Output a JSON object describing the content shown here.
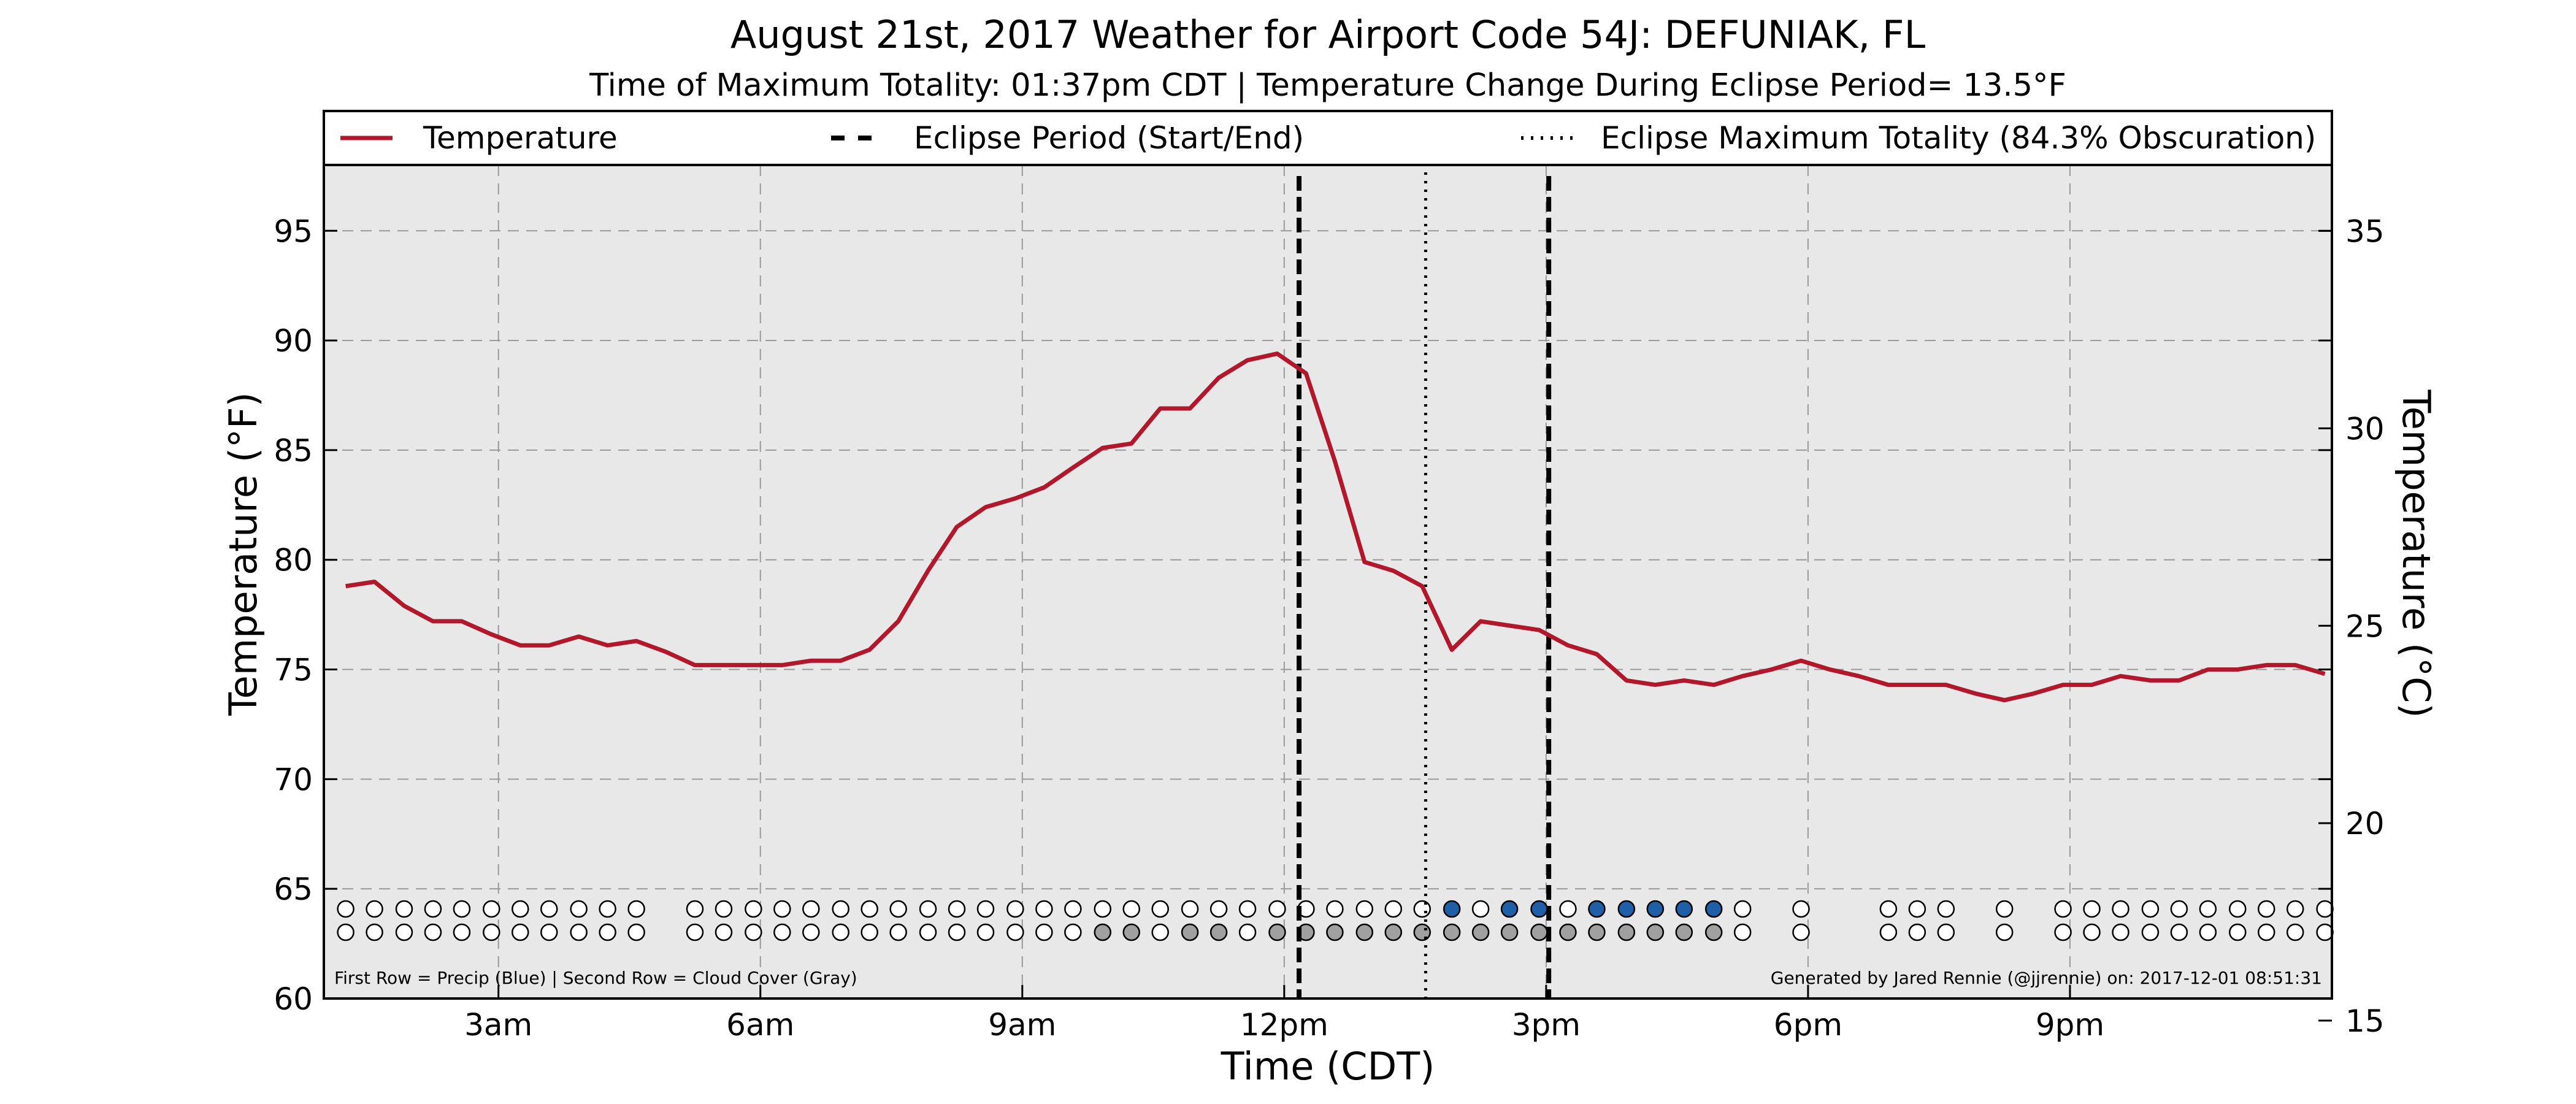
{
  "chart_data": {
    "type": "line",
    "title": "August 21st, 2017 Weather for Airport Code 54J: DEFUNIAK, FL",
    "subtitle": "Time of Maximum Totality: 01:37pm CDT | Temperature Change During Eclipse Period= 13.5°F",
    "xlabel": "Time (CDT)",
    "ylabel_left": "Temperature (°F)",
    "ylabel_right": "Temperature (°C)",
    "xlim": [
      1,
      24
    ],
    "ylim_left": [
      60,
      98
    ],
    "ylim_right": [
      15.56,
      36.67
    ],
    "x_ticks": [
      {
        "x": 3,
        "label": "3am"
      },
      {
        "x": 6,
        "label": "6am"
      },
      {
        "x": 9,
        "label": "9am"
      },
      {
        "x": 12,
        "label": "12pm"
      },
      {
        "x": 15,
        "label": "3pm"
      },
      {
        "x": 18,
        "label": "6pm"
      },
      {
        "x": 21,
        "label": "9pm"
      }
    ],
    "y_ticks_left": [
      60,
      65,
      70,
      75,
      80,
      85,
      90,
      95
    ],
    "y_ticks_right": [
      15,
      20,
      25,
      30,
      35
    ],
    "grid": true,
    "legend": {
      "position": "top",
      "entries": [
        "Temperature",
        "Eclipse Period (Start/End)",
        "Eclipse Maximum Totality (84.3% Obscuration)"
      ]
    },
    "colors": {
      "temperature": "#b2182b",
      "precip": "#1f5fa8",
      "cloud": "#a0a0a0",
      "plot_bg": "#e8e8e8"
    },
    "eclipse_start": 12.17,
    "eclipse_end": 15.03,
    "max_totality": 13.62,
    "series": [
      {
        "name": "Temperature",
        "x": [
          1.25,
          1.58,
          1.92,
          2.25,
          2.58,
          2.92,
          3.25,
          3.58,
          3.92,
          4.25,
          4.58,
          4.92,
          5.25,
          5.58,
          5.92,
          6.25,
          6.58,
          6.92,
          7.25,
          7.58,
          7.92,
          8.25,
          8.58,
          8.92,
          9.25,
          9.58,
          9.92,
          10.25,
          10.58,
          10.92,
          11.25,
          11.58,
          11.92,
          12.25,
          12.58,
          12.92,
          13.25,
          13.58,
          13.92,
          14.25,
          14.58,
          14.92,
          15.25,
          15.58,
          15.92,
          16.25,
          16.58,
          16.92,
          17.25,
          17.58,
          17.92,
          18.25,
          18.58,
          18.92,
          19.25,
          19.58,
          19.92,
          20.25,
          20.58,
          20.92,
          21.25,
          21.58,
          21.92,
          22.25,
          22.58,
          22.92,
          23.25,
          23.58,
          23.92
        ],
        "values": [
          78.8,
          79.0,
          77.9,
          77.2,
          77.2,
          76.6,
          76.1,
          76.1,
          76.5,
          76.1,
          76.3,
          75.8,
          75.2,
          75.2,
          75.2,
          75.2,
          75.4,
          75.4,
          75.9,
          77.2,
          79.5,
          81.5,
          82.4,
          82.8,
          83.3,
          84.2,
          85.1,
          85.3,
          86.9,
          86.9,
          88.3,
          89.1,
          89.4,
          88.5,
          84.5,
          79.9,
          79.5,
          78.8,
          75.9,
          77.2,
          77.0,
          76.8,
          76.1,
          75.7,
          74.5,
          74.3,
          74.5,
          74.3,
          74.7,
          75.0,
          75.4,
          75.0,
          74.7,
          74.3,
          74.3,
          74.3,
          73.9,
          73.6,
          73.9,
          74.3,
          74.3,
          74.7,
          74.5,
          74.5,
          75.0,
          75.0,
          75.2,
          75.2,
          74.8
        ]
      }
    ],
    "indicator_rows": {
      "note_left": "First Row = Precip (Blue) | Second Row = Cloud Cover (Gray)",
      "note_right": "Generated by Jared Rennie (@jjrennie) on: 2017-12-01 08:51:31",
      "x": [
        1.25,
        1.58,
        1.92,
        2.25,
        2.58,
        2.92,
        3.25,
        3.58,
        3.92,
        4.25,
        4.58,
        5.25,
        5.58,
        5.92,
        6.25,
        6.58,
        6.92,
        7.25,
        7.58,
        7.92,
        8.25,
        8.58,
        8.92,
        9.25,
        9.58,
        9.92,
        10.25,
        10.58,
        10.92,
        11.25,
        11.58,
        11.92,
        12.25,
        12.58,
        12.92,
        13.25,
        13.58,
        13.92,
        14.25,
        14.58,
        14.92,
        15.25,
        15.58,
        15.92,
        16.25,
        16.58,
        16.92,
        17.25,
        17.92,
        18.92,
        19.25,
        19.58,
        20.25,
        20.92,
        21.25,
        21.58,
        21.92,
        22.25,
        22.58,
        22.92,
        23.25,
        23.58,
        23.92
      ],
      "precip": [
        0,
        0,
        0,
        0,
        0,
        0,
        0,
        0,
        0,
        0,
        0,
        0,
        0,
        0,
        0,
        0,
        0,
        0,
        0,
        0,
        0,
        0,
        0,
        0,
        0,
        0,
        0,
        0,
        0,
        0,
        0,
        0,
        0,
        0,
        0,
        0,
        0,
        1,
        0,
        1,
        1,
        0,
        1,
        1,
        1,
        1,
        1,
        0,
        0,
        0,
        0,
        0,
        0,
        0,
        0,
        0,
        0,
        0,
        0,
        0,
        0,
        0,
        0
      ],
      "cloud": [
        0,
        0,
        0,
        0,
        0,
        0,
        0,
        0,
        0,
        0,
        0,
        0,
        0,
        0,
        0,
        0,
        0,
        0,
        0,
        0,
        0,
        0,
        0,
        0,
        0,
        1,
        1,
        0,
        1,
        1,
        0,
        1,
        1,
        1,
        1,
        1,
        1,
        1,
        1,
        1,
        1,
        1,
        1,
        1,
        1,
        1,
        1,
        0,
        0,
        0,
        0,
        0,
        0,
        0,
        0,
        0,
        0,
        0,
        0,
        0,
        0,
        0,
        0
      ]
    }
  }
}
